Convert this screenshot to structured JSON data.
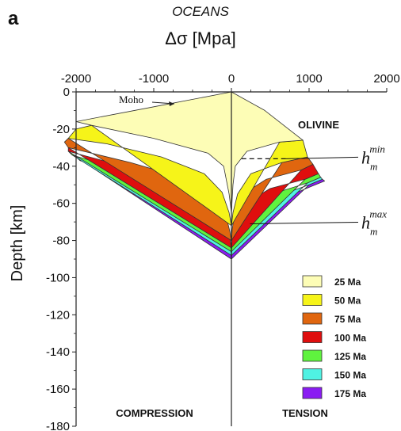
{
  "panel_label": "a",
  "title": "OCEANS",
  "xlabel": "Δσ [Mpa]",
  "ylabel": "Depth [km]",
  "colors": {
    "25 Ma": "#fdfdb6",
    "50 Ma": "#f6f419",
    "75 Ma": "#e0660f",
    "100 Ma": "#df0e0e",
    "125 Ma": "#5ff33e",
    "150 Ma": "#4ff2e3",
    "175 Ma": "#8a1cf2"
  },
  "chart_data": {
    "type": "area",
    "title": "OCEANS",
    "xlabel": "Δσ [Mpa]",
    "ylabel": "Depth [km]",
    "xlim": [
      -2000,
      2000
    ],
    "ylim": [
      0,
      -180
    ],
    "x_ticks": [
      "-2000",
      "-1000",
      "0",
      "1000",
      "2000"
    ],
    "y_ticks": [
      "0",
      "-20",
      "-40",
      "-60",
      "-80",
      "-100",
      "-120",
      "-140",
      "-160",
      "-180"
    ],
    "x_axis_position": "top",
    "grid": false,
    "legend_position": "bottom-right",
    "series": [
      {
        "name": "25 Ma",
        "compression": [
          [
            0,
            0
          ],
          [
            -1000,
            -8
          ],
          [
            -2000,
            -16
          ],
          [
            -1800,
            -18
          ],
          [
            -1000,
            -25
          ],
          [
            -300,
            -33
          ],
          [
            -100,
            -40
          ],
          [
            -30,
            -55
          ],
          [
            0,
            -65
          ]
        ],
        "tension": [
          [
            0,
            0
          ],
          [
            430,
            -10
          ],
          [
            920,
            -26
          ],
          [
            620,
            -27
          ],
          [
            200,
            -32
          ],
          [
            50,
            -40
          ],
          [
            20,
            -50
          ],
          [
            0,
            -65
          ]
        ]
      },
      {
        "name": "50 Ma",
        "compression": [
          [
            -1800,
            -18
          ],
          [
            -2000,
            -20
          ],
          [
            -2100,
            -25
          ],
          [
            -1600,
            -28
          ],
          [
            -900,
            -35
          ],
          [
            -350,
            -44
          ],
          [
            -120,
            -54
          ],
          [
            -30,
            -65
          ],
          [
            0,
            -72
          ]
        ],
        "tension": [
          [
            620,
            -27
          ],
          [
            920,
            -26
          ],
          [
            980,
            -35
          ],
          [
            650,
            -38
          ],
          [
            250,
            -44
          ],
          [
            80,
            -55
          ],
          [
            20,
            -65
          ],
          [
            0,
            -72
          ]
        ]
      },
      {
        "name": "75 Ma",
        "compression": [
          [
            -2100,
            -25
          ],
          [
            -2150,
            -27
          ],
          [
            -2100,
            -30
          ],
          [
            -1300,
            -38
          ],
          [
            -650,
            -46
          ],
          [
            -250,
            -55
          ],
          [
            -80,
            -65
          ],
          [
            -20,
            -75
          ],
          [
            0,
            -80
          ]
        ],
        "tension": [
          [
            650,
            -38
          ],
          [
            980,
            -35
          ],
          [
            1050,
            -39
          ],
          [
            900,
            -42
          ],
          [
            450,
            -47
          ],
          [
            150,
            -55
          ],
          [
            40,
            -66
          ],
          [
            10,
            -74
          ],
          [
            0,
            -80
          ]
        ]
      },
      {
        "name": "100 Ma",
        "compression": [
          [
            -2100,
            -30
          ],
          [
            -2100,
            -32
          ],
          [
            -1200,
            -42
          ],
          [
            -550,
            -52
          ],
          [
            -200,
            -62
          ],
          [
            -60,
            -72
          ],
          [
            -15,
            -80
          ],
          [
            0,
            -84
          ]
        ],
        "tension": [
          [
            900,
            -42
          ],
          [
            1050,
            -39
          ],
          [
            1120,
            -44
          ],
          [
            950,
            -47
          ],
          [
            500,
            -52
          ],
          [
            180,
            -60
          ],
          [
            50,
            -70
          ],
          [
            10,
            -78
          ],
          [
            0,
            -84
          ]
        ]
      },
      {
        "name": "125 Ma",
        "compression": [
          [
            -2100,
            -32
          ],
          [
            -2050,
            -34
          ],
          [
            -1150,
            -45
          ],
          [
            -500,
            -55
          ],
          [
            -180,
            -64
          ],
          [
            -50,
            -74
          ],
          [
            -10,
            -82
          ],
          [
            0,
            -86
          ]
        ],
        "tension": [
          [
            950,
            -47
          ],
          [
            1120,
            -44
          ],
          [
            1150,
            -46
          ],
          [
            980,
            -49
          ],
          [
            520,
            -55
          ],
          [
            190,
            -63
          ],
          [
            50,
            -72
          ],
          [
            10,
            -80
          ],
          [
            0,
            -86
          ]
        ]
      },
      {
        "name": "150 Ma",
        "compression": [
          [
            -2050,
            -34
          ],
          [
            -2000,
            -35
          ],
          [
            -1100,
            -46
          ],
          [
            -480,
            -57
          ],
          [
            -170,
            -66
          ],
          [
            -45,
            -76
          ],
          [
            -10,
            -84
          ],
          [
            0,
            -88
          ]
        ],
        "tension": [
          [
            980,
            -49
          ],
          [
            1150,
            -46
          ],
          [
            1170,
            -47
          ],
          [
            1000,
            -50
          ],
          [
            540,
            -57
          ],
          [
            200,
            -65
          ],
          [
            50,
            -74
          ],
          [
            10,
            -82
          ],
          [
            0,
            -88
          ]
        ]
      },
      {
        "name": "175 Ma",
        "compression": [
          [
            -2000,
            -35
          ],
          [
            -1950,
            -37
          ],
          [
            -1050,
            -48
          ],
          [
            -450,
            -59
          ],
          [
            -160,
            -68
          ],
          [
            -40,
            -78
          ],
          [
            -8,
            -86
          ],
          [
            0,
            -90
          ]
        ],
        "tension": [
          [
            1000,
            -50
          ],
          [
            1170,
            -47
          ],
          [
            1200,
            -48
          ],
          [
            1020,
            -51
          ],
          [
            560,
            -59
          ],
          [
            210,
            -67
          ],
          [
            50,
            -76
          ],
          [
            10,
            -84
          ],
          [
            0,
            -90
          ]
        ]
      }
    ],
    "annotations": {
      "moho": "Moho",
      "olivine": "OLIVINE",
      "compression": "COMPRESSION",
      "tension": "TENSION",
      "hm_min_base": "h",
      "hm_min_sub": "m",
      "hm_min_sup": "min",
      "hm_max_base": "h",
      "hm_max_sub": "m",
      "hm_max_sup": "max",
      "moho_depth_km": -8,
      "hm_min_depth_km": -36,
      "hm_max_depth_km": -71
    }
  }
}
